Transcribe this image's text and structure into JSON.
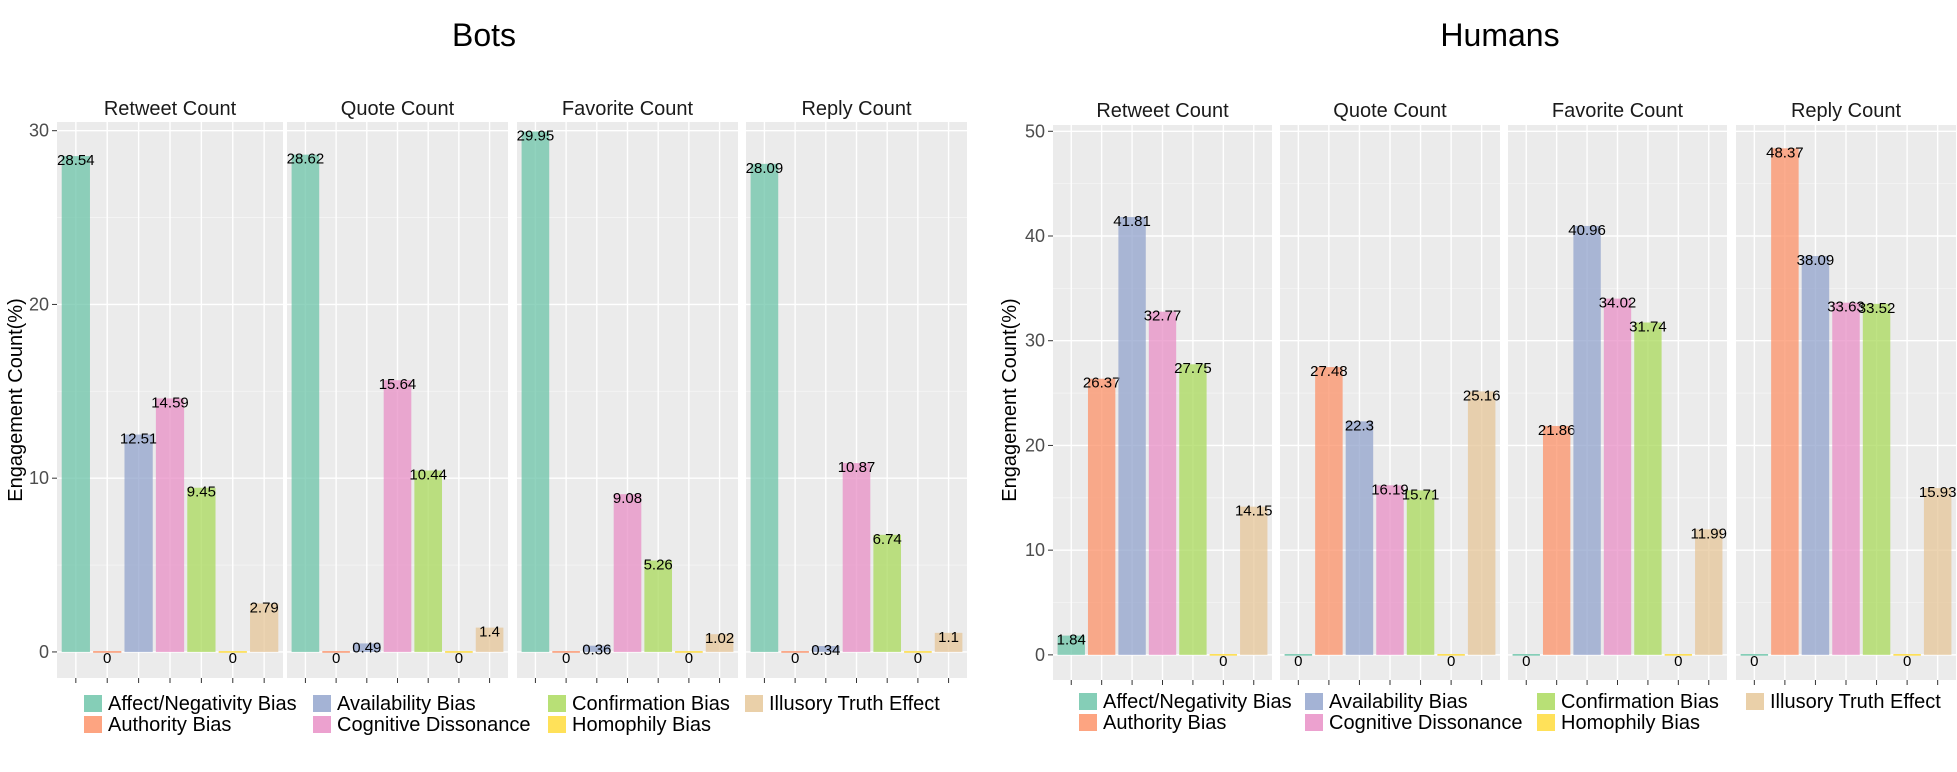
{
  "legend": [
    {
      "label": "Affect/Negativity Bias",
      "color": "#66C2A5"
    },
    {
      "label": "Authority Bias",
      "color": "#FC8D62"
    },
    {
      "label": "Availability Bias",
      "color": "#8DA0CB"
    },
    {
      "label": "Cognitive Dissonance",
      "color": "#E78AC3"
    },
    {
      "label": "Confirmation Bias",
      "color": "#A6D854"
    },
    {
      "label": "Homophily Bias",
      "color": "#FFD92F"
    },
    {
      "label": "Illusory Truth Effect",
      "color": "#E5C494"
    }
  ],
  "chart_data": [
    {
      "type": "bar",
      "title": "Bots",
      "ylabel": "Engagement Count(%)",
      "ylim": [
        -1.5,
        30.5
      ],
      "yticks": [
        0,
        10,
        20,
        30
      ],
      "categories": [
        "Affect/Negativity Bias",
        "Authority Bias",
        "Availability Bias",
        "Cognitive Dissonance",
        "Confirmation Bias",
        "Homophily Bias",
        "Illusory Truth Effect"
      ],
      "facets": [
        {
          "name": "Retweet Count",
          "values": [
            28.54,
            0,
            12.51,
            14.59,
            9.45,
            0,
            2.79
          ],
          "labels": [
            "28.54",
            "0",
            "12.51",
            "14.59",
            "9.45",
            "0",
            "2.79"
          ]
        },
        {
          "name": "Quote Count",
          "values": [
            28.62,
            0,
            0.49,
            15.64,
            10.44,
            0,
            1.4
          ],
          "labels": [
            "28.62",
            "0",
            "0.49",
            "15.64",
            "10.44",
            "0",
            "1.4"
          ]
        },
        {
          "name": "Favorite Count",
          "values": [
            29.95,
            0,
            0.36,
            9.08,
            5.26,
            0,
            1.02
          ],
          "labels": [
            "29.95",
            "0",
            "0.36",
            "9.08",
            "5.26",
            "0",
            "1.02"
          ]
        },
        {
          "name": "Reply Count",
          "values": [
            28.09,
            0,
            0.34,
            10.87,
            6.74,
            0,
            1.1
          ],
          "labels": [
            "28.09",
            "0",
            "0.34",
            "10.87",
            "6.74",
            "0",
            "1.1"
          ]
        }
      ]
    },
    {
      "type": "bar",
      "title": "Humans",
      "ylabel": "Engagement Count(%)",
      "ylim": [
        -2.4,
        50.6
      ],
      "yticks": [
        0,
        10,
        20,
        30,
        40,
        50
      ],
      "categories": [
        "Affect/Negativity Bias",
        "Authority Bias",
        "Availability Bias",
        "Cognitive Dissonance",
        "Confirmation Bias",
        "Homophily Bias",
        "Illusory Truth Effect"
      ],
      "facets": [
        {
          "name": "Retweet Count",
          "values": [
            1.84,
            26.37,
            41.81,
            32.77,
            27.75,
            0,
            14.15
          ],
          "labels": [
            "1.84",
            "26.37",
            "41.81",
            "32.77",
            "27.75",
            "0",
            "14.15"
          ]
        },
        {
          "name": "Quote Count",
          "values": [
            0,
            27.48,
            22.3,
            16.19,
            15.71,
            0,
            25.16
          ],
          "labels": [
            "0",
            "27.48",
            "22.3",
            "16.19",
            "15.71",
            "0",
            "25.16"
          ]
        },
        {
          "name": "Favorite Count",
          "values": [
            0,
            21.86,
            40.96,
            34.02,
            31.74,
            0,
            11.99
          ],
          "labels": [
            "0",
            "21.86",
            "40.96",
            "34.02",
            "31.74",
            "0",
            "11.99"
          ]
        },
        {
          "name": "Reply Count",
          "values": [
            0,
            48.37,
            38.09,
            33.63,
            33.52,
            0,
            15.93
          ],
          "labels": [
            "0",
            "48.37",
            "38.09",
            "33.63",
            "33.52",
            "0",
            "15.93"
          ]
        }
      ]
    }
  ]
}
